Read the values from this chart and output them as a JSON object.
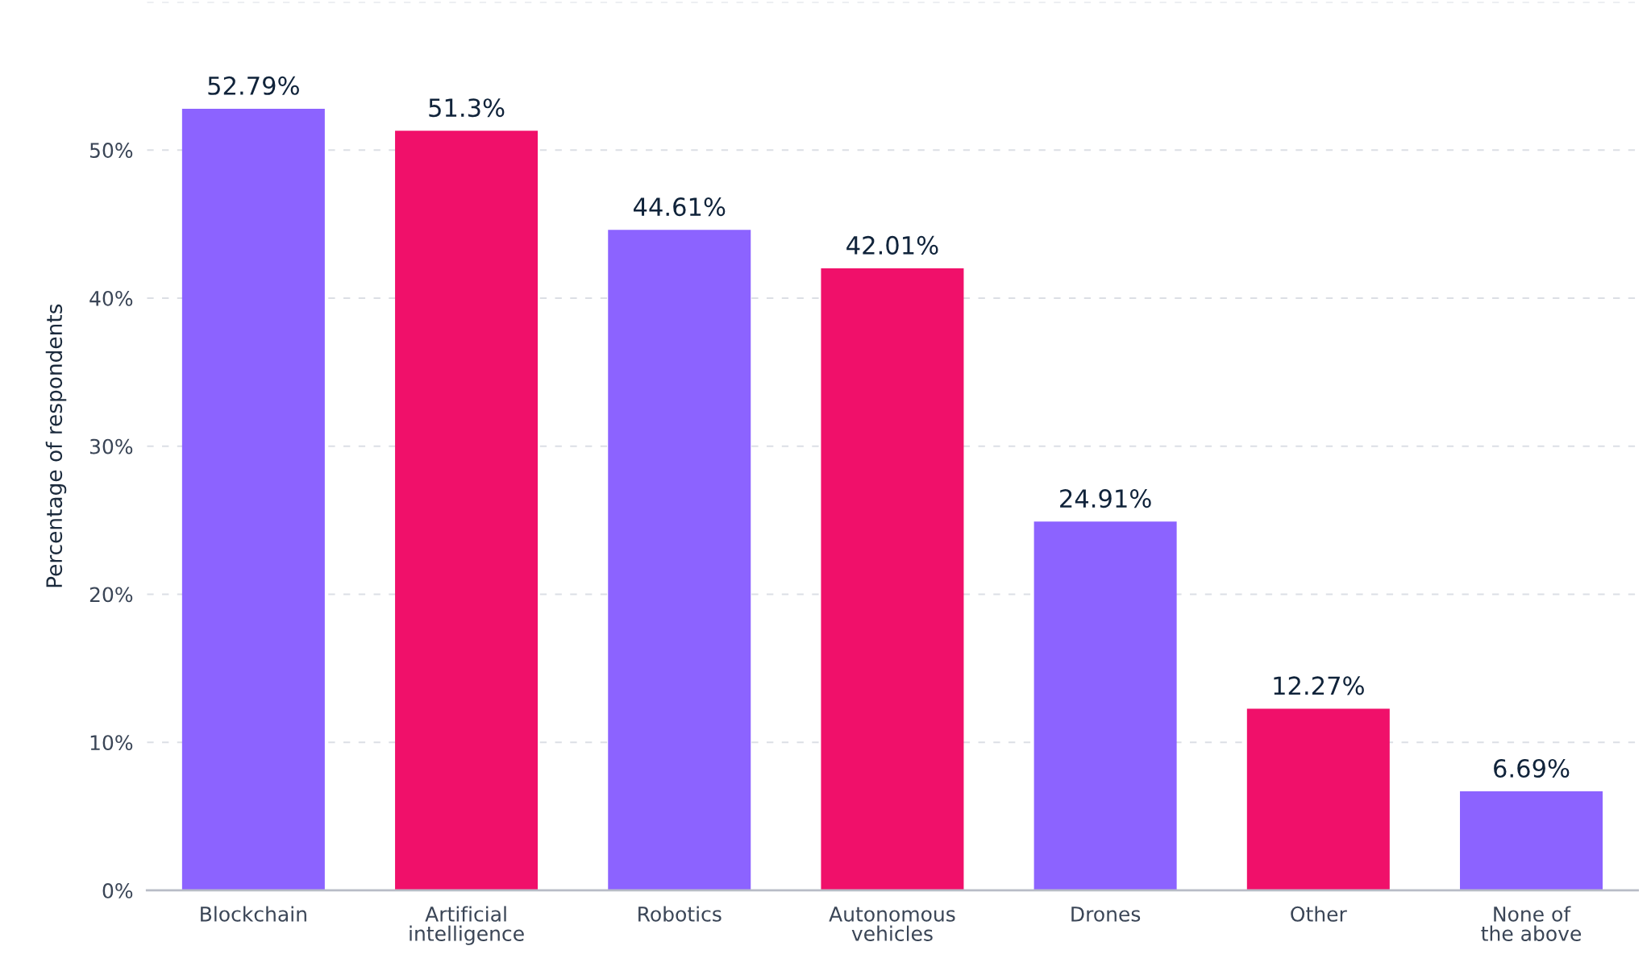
{
  "chart_data": {
    "type": "bar",
    "ylabel": "Percentage of respondents",
    "categories": [
      "Blockchain",
      "Artificial\nintelligence",
      "Robotics",
      "Autonomous\nvehicles",
      "Drones",
      "Other",
      "None of\nthe above"
    ],
    "values": [
      52.79,
      51.3,
      44.61,
      42.01,
      24.91,
      12.27,
      6.69
    ],
    "colors": [
      "#8c63ff",
      "#f0106a",
      "#8c63ff",
      "#f0106a",
      "#8c63ff",
      "#f0106a",
      "#8c63ff"
    ],
    "value_labels": [
      "52.79%",
      "51.3%",
      "44.61%",
      "42.01%",
      "24.91%",
      "12.27%",
      "6.69%"
    ],
    "ylim": [
      0,
      60
    ],
    "yticks": [
      {
        "value": 0,
        "label": "0%"
      },
      {
        "value": 10,
        "label": "10%"
      },
      {
        "value": 20,
        "label": "20%"
      },
      {
        "value": 30,
        "label": "30%"
      },
      {
        "value": 40,
        "label": "40%"
      },
      {
        "value": 50,
        "label": "50%"
      },
      {
        "value": 60,
        "label": null
      }
    ],
    "grid": "y",
    "legend": false
  }
}
